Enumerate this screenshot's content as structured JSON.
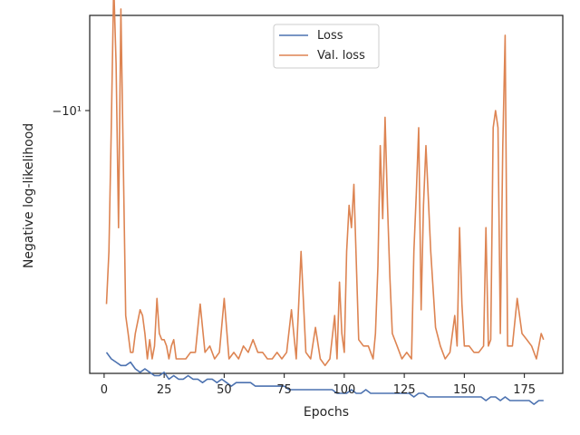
{
  "chart_data": {
    "type": "line",
    "xlabel": "Epochs",
    "ylabel": "Negative log-likelihood",
    "xlim": [
      -6,
      191
    ],
    "x_ticks": [
      0,
      25,
      50,
      75,
      100,
      125,
      150,
      175
    ],
    "y_tick_labels": [
      "−10¹"
    ],
    "y_scale": "symlog (inverted)",
    "grid": false,
    "legend": {
      "placement": "upper center"
    },
    "colors": {
      "Loss": "#4c72b0",
      "Val. loss": "#dd8452",
      "axis": "#262626"
    },
    "series": [
      {
        "name": "Loss",
        "x": [
          1,
          3,
          5,
          7,
          9,
          11,
          13,
          15,
          17,
          19,
          21,
          23,
          25,
          27,
          29,
          31,
          33,
          35,
          37,
          39,
          41,
          43,
          45,
          47,
          49,
          51,
          53,
          55,
          57,
          59,
          61,
          63,
          65,
          67,
          69,
          71,
          73,
          75,
          77,
          79,
          81,
          83,
          85,
          87,
          89,
          91,
          93,
          95,
          97,
          99,
          101,
          103,
          105,
          107,
          109,
          111,
          113,
          115,
          117,
          119,
          121,
          123,
          125,
          127,
          129,
          131,
          133,
          135,
          137,
          139,
          141,
          143,
          145,
          147,
          149,
          151,
          153,
          155,
          157,
          159,
          161,
          163,
          165,
          167,
          169,
          171,
          173,
          175,
          177,
          179,
          181,
          183
        ],
        "values": [
          -4.7,
          -4.6,
          -4.55,
          -4.5,
          -4.5,
          -4.55,
          -4.45,
          -4.4,
          -4.45,
          -4.4,
          -4.35,
          -4.35,
          -4.4,
          -4.3,
          -4.35,
          -4.3,
          -4.3,
          -4.35,
          -4.3,
          -4.3,
          -4.25,
          -4.3,
          -4.3,
          -4.25,
          -4.3,
          -4.25,
          -4.2,
          -4.25,
          -4.25,
          -4.25,
          -4.25,
          -4.2,
          -4.2,
          -4.2,
          -4.2,
          -4.2,
          -4.2,
          -4.2,
          -4.15,
          -4.15,
          -4.15,
          -4.15,
          -4.15,
          -4.15,
          -4.15,
          -4.15,
          -4.15,
          -4.15,
          -4.1,
          -4.1,
          -4.1,
          -4.15,
          -4.1,
          -4.1,
          -4.15,
          -4.1,
          -4.1,
          -4.1,
          -4.1,
          -4.1,
          -4.1,
          -4.1,
          -4.1,
          -4.1,
          -4.05,
          -4.1,
          -4.1,
          -4.05,
          -4.05,
          -4.05,
          -4.05,
          -4.05,
          -4.05,
          -4.05,
          -4.05,
          -4.05,
          -4.05,
          -4.05,
          -4.05,
          -4.0,
          -4.05,
          -4.05,
          -4.0,
          -4.05,
          -4.0,
          -4.0,
          -4.0,
          -4.0,
          -4.0,
          -3.95,
          -4.0,
          -4.0
        ]
      },
      {
        "name": "Val. loss",
        "x": [
          1,
          2,
          3,
          4,
          5,
          6,
          7,
          8,
          9,
          10,
          11,
          12,
          13,
          14,
          15,
          16,
          17,
          18,
          19,
          20,
          21,
          22,
          23,
          24,
          25,
          26,
          27,
          28,
          29,
          30,
          32,
          34,
          36,
          38,
          40,
          42,
          44,
          46,
          48,
          50,
          52,
          54,
          56,
          58,
          60,
          62,
          64,
          66,
          68,
          70,
          72,
          74,
          76,
          78,
          80,
          82,
          84,
          86,
          88,
          90,
          92,
          94,
          96,
          97,
          98,
          99,
          100,
          101,
          102,
          103,
          104,
          106,
          108,
          110,
          112,
          113,
          114,
          115,
          116,
          117,
          118,
          119,
          120,
          122,
          124,
          126,
          128,
          129,
          130,
          131,
          132,
          133,
          134,
          136,
          138,
          140,
          142,
          144,
          146,
          147,
          148,
          149,
          150,
          152,
          154,
          156,
          158,
          159,
          160,
          161,
          162,
          163,
          164,
          165,
          166,
          167,
          168,
          170,
          172,
          174,
          176,
          178,
          180,
          182,
          183
        ],
        "values": [
          -5.5,
          -6.5,
          -9.5,
          -14.5,
          -11.5,
          -7.0,
          -13.5,
          -8.5,
          -5.3,
          -5.0,
          -4.7,
          -4.7,
          -5.0,
          -5.2,
          -5.4,
          -5.3,
          -5.0,
          -4.6,
          -4.9,
          -4.6,
          -4.8,
          -5.6,
          -5.0,
          -4.9,
          -4.9,
          -4.8,
          -4.6,
          -4.8,
          -4.9,
          -4.6,
          -4.6,
          -4.6,
          -4.7,
          -4.7,
          -5.5,
          -4.7,
          -4.8,
          -4.6,
          -4.7,
          -5.6,
          -4.6,
          -4.7,
          -4.6,
          -4.8,
          -4.7,
          -4.9,
          -4.7,
          -4.7,
          -4.6,
          -4.6,
          -4.7,
          -4.6,
          -4.7,
          -5.4,
          -4.6,
          -6.5,
          -4.7,
          -4.6,
          -5.1,
          -4.6,
          -4.5,
          -4.6,
          -5.3,
          -4.6,
          -5.9,
          -5.0,
          -4.7,
          -6.5,
          -7.5,
          -7.0,
          -8.0,
          -4.9,
          -4.8,
          -4.8,
          -4.6,
          -5.0,
          -6.2,
          -9.0,
          -7.2,
          -9.8,
          -7.5,
          -6.0,
          -5.0,
          -4.8,
          -4.6,
          -4.7,
          -4.6,
          -6.5,
          -7.8,
          -9.5,
          -5.4,
          -7.5,
          -9.0,
          -6.5,
          -5.1,
          -4.8,
          -4.6,
          -4.7,
          -5.3,
          -4.8,
          -7.0,
          -5.5,
          -4.8,
          -4.8,
          -4.7,
          -4.7,
          -4.8,
          -7.0,
          -4.8,
          -4.9,
          -9.5,
          -10.0,
          -9.5,
          -5.0,
          -9.0,
          -12.5,
          -4.8,
          -4.8,
          -5.6,
          -5.0,
          -4.9,
          -4.8,
          -4.6,
          -5.0,
          -4.9
        ]
      }
    ]
  }
}
